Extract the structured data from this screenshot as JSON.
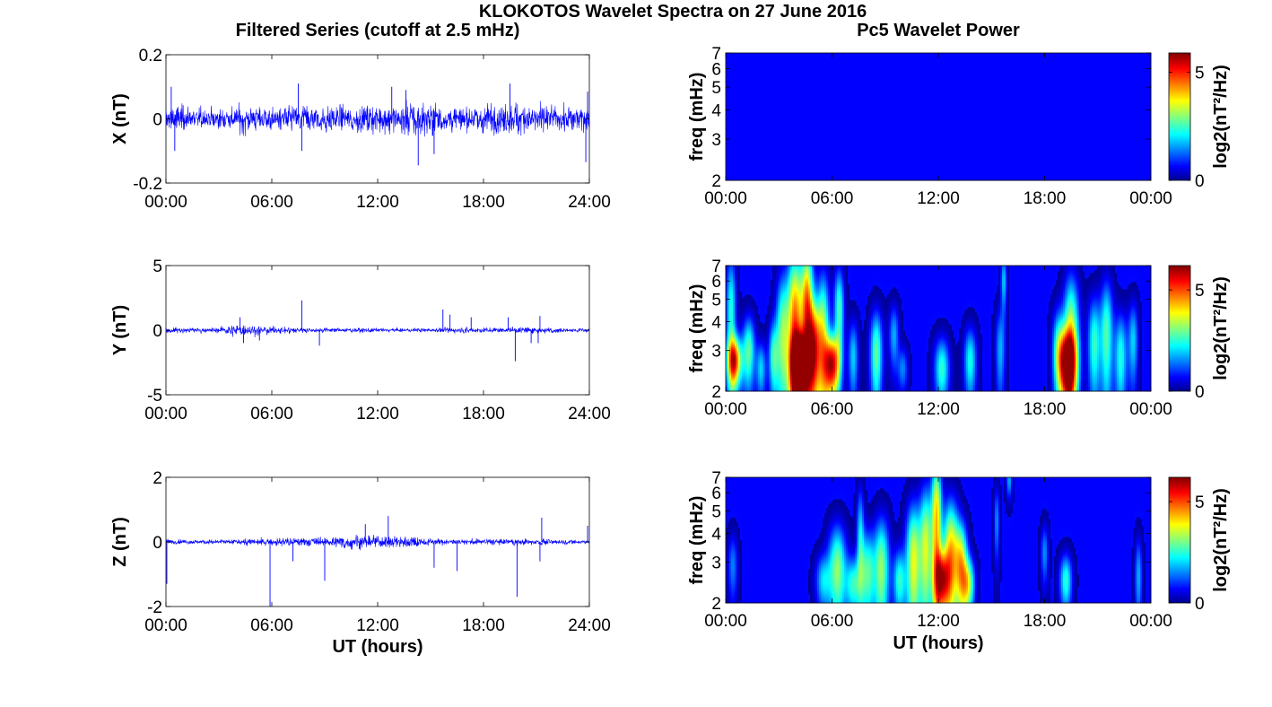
{
  "figure": {
    "title": "KLOKOTOS Wavelet Spectra on 27 June 2016",
    "left_title": "Filtered Series (cutoff at 2.5 mHz)",
    "right_title": "Pc5 Wavelet Power"
  },
  "chart_data": [
    {
      "type": "line",
      "id": "series-x",
      "ylabel": "X (nT)",
      "ylim": [
        -0.2,
        0.2
      ],
      "yticks": [
        "0.2",
        "0",
        "-0.2"
      ],
      "xticks": [
        "00:00",
        "06:00",
        "12:00",
        "18:00",
        "24:00"
      ],
      "xlim_hours": [
        0,
        24
      ],
      "color": "#0000ff",
      "envelope": {
        "x_hours": [
          0,
          1,
          2,
          3,
          4,
          5,
          6,
          7,
          8,
          9,
          10,
          11,
          12,
          13,
          14,
          15,
          16,
          17,
          18,
          19,
          20,
          21,
          22,
          23,
          24
        ],
        "amp": [
          0.05,
          0.06,
          0.045,
          0.045,
          0.055,
          0.055,
          0.05,
          0.06,
          0.07,
          0.06,
          0.055,
          0.06,
          0.06,
          0.065,
          0.08,
          0.07,
          0.055,
          0.06,
          0.065,
          0.07,
          0.075,
          0.065,
          0.055,
          0.055,
          0.06
        ]
      },
      "spikes": [
        {
          "x": 0.3,
          "y": 0.1
        },
        {
          "x": 0.5,
          "y": -0.1
        },
        {
          "x": 7.5,
          "y": 0.11
        },
        {
          "x": 7.7,
          "y": -0.1
        },
        {
          "x": 12.8,
          "y": 0.1
        },
        {
          "x": 14.3,
          "y": -0.145
        },
        {
          "x": 13.6,
          "y": 0.09
        },
        {
          "x": 19.5,
          "y": 0.11
        },
        {
          "x": 15.2,
          "y": -0.11
        },
        {
          "x": 23.8,
          "y": -0.135
        },
        {
          "x": 23.9,
          "y": 0.085
        }
      ]
    },
    {
      "type": "line",
      "id": "series-y",
      "ylabel": "Y (nT)",
      "ylim": [
        -5,
        5
      ],
      "yticks": [
        "5",
        "0",
        "-5"
      ],
      "xticks": [
        "00:00",
        "06:00",
        "12:00",
        "18:00",
        "24:00"
      ],
      "xlim_hours": [
        0,
        24
      ],
      "color": "#0000ff",
      "envelope": {
        "x_hours": [
          0,
          1,
          2,
          3,
          4,
          5,
          6,
          7,
          8,
          9,
          10,
          11,
          12,
          13,
          14,
          15,
          16,
          17,
          18,
          19,
          20,
          21,
          22,
          23,
          24
        ],
        "amp": [
          0.3,
          0.3,
          0.25,
          0.3,
          0.7,
          0.6,
          0.4,
          0.35,
          0.3,
          0.25,
          0.25,
          0.22,
          0.22,
          0.22,
          0.22,
          0.25,
          0.3,
          0.3,
          0.3,
          0.3,
          0.35,
          0.4,
          0.3,
          0.25,
          0.25
        ]
      },
      "spikes": [
        {
          "x": 4.2,
          "y": 1.0
        },
        {
          "x": 4.4,
          "y": -1.0
        },
        {
          "x": 5.3,
          "y": -0.8
        },
        {
          "x": 7.7,
          "y": 2.3
        },
        {
          "x": 8.7,
          "y": -1.2
        },
        {
          "x": 15.7,
          "y": 1.6
        },
        {
          "x": 16.1,
          "y": 1.2
        },
        {
          "x": 17.3,
          "y": 1.0
        },
        {
          "x": 19.4,
          "y": 1.0
        },
        {
          "x": 19.8,
          "y": -2.4
        },
        {
          "x": 20.7,
          "y": -1.0
        },
        {
          "x": 21.2,
          "y": 1.1
        },
        {
          "x": 21.1,
          "y": -1.0
        }
      ]
    },
    {
      "type": "line",
      "id": "series-z",
      "ylabel": "Z (nT)",
      "ylim": [
        -2,
        2
      ],
      "yticks": [
        "2",
        "0",
        "-2"
      ],
      "xticks": [
        "00:00",
        "06:00",
        "12:00",
        "18:00",
        "24:00"
      ],
      "xlabel": "UT (hours)",
      "xlim_hours": [
        0,
        24
      ],
      "color": "#0000ff",
      "envelope": {
        "x_hours": [
          0,
          1,
          2,
          3,
          4,
          5,
          6,
          7,
          8,
          9,
          10,
          11,
          12,
          13,
          14,
          15,
          16,
          17,
          18,
          19,
          20,
          21,
          22,
          23,
          24
        ],
        "amp": [
          0.12,
          0.1,
          0.1,
          0.1,
          0.12,
          0.15,
          0.15,
          0.2,
          0.22,
          0.2,
          0.28,
          0.3,
          0.28,
          0.3,
          0.25,
          0.15,
          0.12,
          0.12,
          0.15,
          0.12,
          0.12,
          0.15,
          0.12,
          0.1,
          0.1
        ]
      },
      "spikes": [
        {
          "x": 0.05,
          "y": -1.3
        },
        {
          "x": 5.9,
          "y": -2.0
        },
        {
          "x": 7.2,
          "y": -0.6
        },
        {
          "x": 9.0,
          "y": -1.2
        },
        {
          "x": 11.3,
          "y": 0.55
        },
        {
          "x": 12.6,
          "y": 0.8
        },
        {
          "x": 15.2,
          "y": -0.8
        },
        {
          "x": 16.5,
          "y": -0.9
        },
        {
          "x": 19.9,
          "y": -1.7
        },
        {
          "x": 21.3,
          "y": 0.75
        },
        {
          "x": 21.2,
          "y": -0.6
        },
        {
          "x": 23.9,
          "y": 0.5
        }
      ]
    },
    {
      "type": "heatmap",
      "id": "wavelet-x",
      "ylabel": "freq (mHz)",
      "yscale": "log",
      "ylim": [
        2,
        7
      ],
      "yticks": [
        "7",
        "6",
        "5",
        "4",
        "3",
        "2"
      ],
      "xticks": [
        "00:00",
        "06:00",
        "12:00",
        "18:00",
        "00:00"
      ],
      "xlim_hours": [
        0,
        24
      ],
      "colorbar": {
        "label": "log2(nT²/Hz)",
        "ticks": [
          "5",
          "0"
        ],
        "range": [
          0,
          5.9
        ]
      },
      "blobs": []
    },
    {
      "type": "heatmap",
      "id": "wavelet-y",
      "ylabel": "freq (mHz)",
      "yscale": "log",
      "ylim": [
        2,
        7
      ],
      "yticks": [
        "7",
        "6",
        "5",
        "4",
        "3",
        "2"
      ],
      "xticks": [
        "00:00",
        "06:00",
        "12:00",
        "18:00",
        "00:00"
      ],
      "xlim_hours": [
        0,
        24
      ],
      "colorbar": {
        "label": "log2(nT²/Hz)",
        "ticks": [
          "5",
          "0"
        ],
        "range": [
          0,
          6.2
        ]
      },
      "blobs": [
        {
          "t": 0.5,
          "f": 2.7,
          "v": 5.0,
          "wt": 0.3,
          "wf": 0.5
        },
        {
          "t": 0.3,
          "f": 4.5,
          "v": 2.5,
          "wt": 0.2,
          "wf": 2.0
        },
        {
          "t": 1.3,
          "f": 3.0,
          "v": 2.8,
          "wt": 0.25,
          "wf": 0.8
        },
        {
          "t": 2.0,
          "f": 2.5,
          "v": 2.0,
          "wt": 0.2,
          "wf": 0.5
        },
        {
          "t": 2.7,
          "f": 2.8,
          "v": 2.5,
          "wt": 0.2,
          "wf": 0.8
        },
        {
          "t": 3.2,
          "f": 3.5,
          "v": 3.0,
          "wt": 0.25,
          "wf": 1.8
        },
        {
          "t": 3.9,
          "f": 3.5,
          "v": 5.0,
          "wt": 0.3,
          "wf": 2.8
        },
        {
          "t": 4.2,
          "f": 2.6,
          "v": 6.0,
          "wt": 0.35,
          "wf": 0.6
        },
        {
          "t": 4.6,
          "f": 4.5,
          "v": 4.8,
          "wt": 0.25,
          "wf": 2.5
        },
        {
          "t": 5.0,
          "f": 3.0,
          "v": 4.5,
          "wt": 0.25,
          "wf": 1.2
        },
        {
          "t": 5.5,
          "f": 3.3,
          "v": 3.5,
          "wt": 0.25,
          "wf": 2.0
        },
        {
          "t": 6.0,
          "f": 2.6,
          "v": 5.5,
          "wt": 0.3,
          "wf": 0.6
        },
        {
          "t": 6.4,
          "f": 4.5,
          "v": 2.8,
          "wt": 0.2,
          "wf": 1.5
        },
        {
          "t": 7.2,
          "f": 2.8,
          "v": 2.0,
          "wt": 0.2,
          "wf": 0.8
        },
        {
          "t": 8.5,
          "f": 2.9,
          "v": 3.0,
          "wt": 0.25,
          "wf": 1.0
        },
        {
          "t": 9.5,
          "f": 3.5,
          "v": 1.8,
          "wt": 0.2,
          "wf": 0.8
        },
        {
          "t": 10.0,
          "f": 2.5,
          "v": 1.5,
          "wt": 0.2,
          "wf": 0.4
        },
        {
          "t": 12.2,
          "f": 2.5,
          "v": 2.6,
          "wt": 0.3,
          "wf": 0.6
        },
        {
          "t": 13.8,
          "f": 2.7,
          "v": 2.4,
          "wt": 0.25,
          "wf": 0.7
        },
        {
          "t": 15.5,
          "f": 3.0,
          "v": 1.8,
          "wt": 0.2,
          "wf": 1.0
        },
        {
          "t": 15.7,
          "f": 6.0,
          "v": 2.0,
          "wt": 0.12,
          "wf": 1.2
        },
        {
          "t": 18.8,
          "f": 3.0,
          "v": 2.5,
          "wt": 0.25,
          "wf": 1.0
        },
        {
          "t": 19.5,
          "f": 3.5,
          "v": 3.5,
          "wt": 0.3,
          "wf": 1.8
        },
        {
          "t": 19.3,
          "f": 2.6,
          "v": 5.5,
          "wt": 0.35,
          "wf": 0.7
        },
        {
          "t": 20.8,
          "f": 3.2,
          "v": 2.6,
          "wt": 0.25,
          "wf": 1.2
        },
        {
          "t": 21.5,
          "f": 3.5,
          "v": 2.8,
          "wt": 0.25,
          "wf": 1.6
        },
        {
          "t": 22.3,
          "f": 2.8,
          "v": 2.5,
          "wt": 0.25,
          "wf": 1.0
        },
        {
          "t": 23.0,
          "f": 3.3,
          "v": 2.0,
          "wt": 0.2,
          "wf": 1.0
        }
      ]
    },
    {
      "type": "heatmap",
      "id": "wavelet-z",
      "ylabel": "freq (mHz)",
      "yscale": "log",
      "ylim": [
        2,
        7
      ],
      "yticks": [
        "7",
        "6",
        "5",
        "4",
        "3",
        "2"
      ],
      "xticks": [
        "00:00",
        "06:00",
        "12:00",
        "18:00",
        "00:00"
      ],
      "xlabel": "UT (hours)",
      "xlim_hours": [
        0,
        24
      ],
      "colorbar": {
        "label": "log2(nT²/Hz)",
        "ticks": [
          "5",
          "0"
        ],
        "range": [
          0,
          6.2
        ]
      },
      "blobs": [
        {
          "t": 0.4,
          "f": 2.9,
          "v": 1.5,
          "wt": 0.2,
          "wf": 0.7
        },
        {
          "t": 5.5,
          "f": 2.5,
          "v": 2.0,
          "wt": 0.3,
          "wf": 0.5
        },
        {
          "t": 6.3,
          "f": 2.8,
          "v": 3.2,
          "wt": 0.35,
          "wf": 1.0
        },
        {
          "t": 7.2,
          "f": 2.4,
          "v": 2.5,
          "wt": 0.3,
          "wf": 0.5
        },
        {
          "t": 7.6,
          "f": 4.0,
          "v": 2.0,
          "wt": 0.15,
          "wf": 1.5
        },
        {
          "t": 8.0,
          "f": 2.7,
          "v": 2.8,
          "wt": 0.3,
          "wf": 0.9
        },
        {
          "t": 8.8,
          "f": 2.8,
          "v": 3.2,
          "wt": 0.3,
          "wf": 1.2
        },
        {
          "t": 9.8,
          "f": 2.5,
          "v": 2.5,
          "wt": 0.25,
          "wf": 0.6
        },
        {
          "t": 10.6,
          "f": 3.0,
          "v": 3.8,
          "wt": 0.3,
          "wf": 1.5
        },
        {
          "t": 11.3,
          "f": 3.5,
          "v": 3.5,
          "wt": 0.25,
          "wf": 1.8
        },
        {
          "t": 11.9,
          "f": 4.5,
          "v": 4.2,
          "wt": 0.2,
          "wf": 2.5
        },
        {
          "t": 12.2,
          "f": 2.5,
          "v": 4.5,
          "wt": 0.3,
          "wf": 0.6
        },
        {
          "t": 12.7,
          "f": 3.2,
          "v": 4.2,
          "wt": 0.3,
          "wf": 1.5
        },
        {
          "t": 13.3,
          "f": 2.9,
          "v": 3.8,
          "wt": 0.25,
          "wf": 1.0
        },
        {
          "t": 13.7,
          "f": 2.4,
          "v": 3.2,
          "wt": 0.25,
          "wf": 0.5
        },
        {
          "t": 15.3,
          "f": 4.5,
          "v": 1.6,
          "wt": 0.12,
          "wf": 1.2
        },
        {
          "t": 16.0,
          "f": 6.8,
          "v": 1.8,
          "wt": 0.12,
          "wf": 0.8
        },
        {
          "t": 18.0,
          "f": 3.3,
          "v": 1.6,
          "wt": 0.15,
          "wf": 0.7
        },
        {
          "t": 19.2,
          "f": 2.5,
          "v": 2.6,
          "wt": 0.25,
          "wf": 0.5
        },
        {
          "t": 23.3,
          "f": 2.6,
          "v": 1.8,
          "wt": 0.15,
          "wf": 0.8
        }
      ]
    }
  ]
}
